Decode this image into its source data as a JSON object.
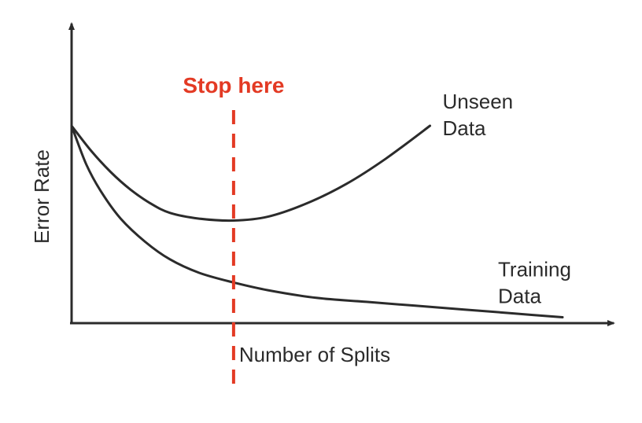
{
  "chart_data": {
    "type": "line",
    "xlabel": "Number of Splits",
    "ylabel": "Error Rate",
    "xlim": [
      0,
      100
    ],
    "ylim": [
      0,
      100
    ],
    "grid": false,
    "series": [
      {
        "name": "Unseen Data",
        "label_lines": [
          "Unseen",
          "Data"
        ],
        "x": [
          0,
          4,
          8,
          12,
          16,
          20,
          26,
          33,
          40,
          48,
          56,
          64,
          73
        ],
        "y": [
          100,
          87,
          76,
          67,
          60,
          55,
          52,
          51,
          53,
          60,
          70,
          83,
          100
        ]
      },
      {
        "name": "Training Data",
        "label_lines": [
          "Training",
          "Data"
        ],
        "x": [
          0,
          3,
          6,
          10,
          15,
          20,
          26,
          33,
          40,
          50,
          60,
          70,
          80,
          90,
          100
        ],
        "y": [
          100,
          80,
          66,
          52,
          40,
          31,
          24,
          19,
          15,
          11,
          9,
          7,
          5,
          3,
          1
        ]
      }
    ],
    "annotations": [
      {
        "text": "Stop here",
        "x": 33,
        "color": "#e33a24",
        "style": "dashed-vertical"
      }
    ]
  }
}
